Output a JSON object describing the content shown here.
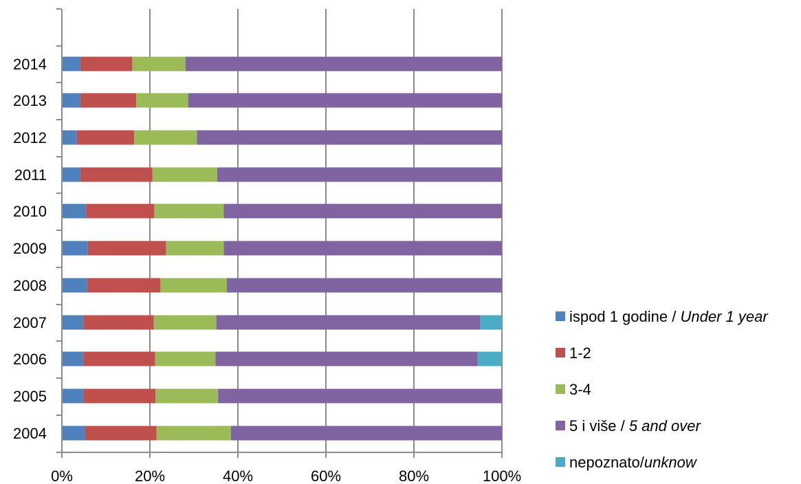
{
  "chart_data": {
    "type": "bar",
    "orientation": "horizontal",
    "stacked": "percent",
    "categories": [
      "2004",
      "2005",
      "2006",
      "2007",
      "2008",
      "2009",
      "2010",
      "2011",
      "2012",
      "2013",
      "2014"
    ],
    "series": [
      {
        "name_main": "ispod 1 godine / ",
        "name_italic": "Under 1 year",
        "color": "#4F81BD",
        "values": [
          5.3,
          4.9,
          4.9,
          4.9,
          5.8,
          5.9,
          5.5,
          4.2,
          3.4,
          4.2,
          4.2
        ]
      },
      {
        "name_main": "1-2",
        "name_italic": "",
        "color": "#C0504D",
        "values": [
          16.2,
          16.4,
          16.3,
          16.0,
          16.6,
          17.8,
          15.5,
          16.4,
          13.0,
          12.7,
          11.8
        ]
      },
      {
        "name_main": "3-4",
        "name_italic": "",
        "color": "#9BBB59",
        "values": [
          16.9,
          14.2,
          13.7,
          14.2,
          15.1,
          13.1,
          15.8,
          14.7,
          14.3,
          11.8,
          12.1
        ]
      },
      {
        "name_main": "5 i više / ",
        "name_italic": "5 and over",
        "color": "#8064A2",
        "values": [
          61.6,
          64.5,
          59.6,
          59.9,
          62.5,
          63.2,
          63.2,
          64.7,
          69.3,
          71.3,
          71.9
        ]
      },
      {
        "name_main": "nepoznato/",
        "name_italic": "unknow",
        "color": "#4BACC6",
        "values": [
          0,
          0,
          5.5,
          5.0,
          0,
          0,
          0,
          0,
          0,
          0,
          0
        ]
      }
    ],
    "x_ticks": [
      "0%",
      "20%",
      "40%",
      "60%",
      "80%",
      "100%"
    ],
    "xlim": [
      0,
      100
    ],
    "grid": "vertical",
    "legend_position": "right"
  }
}
